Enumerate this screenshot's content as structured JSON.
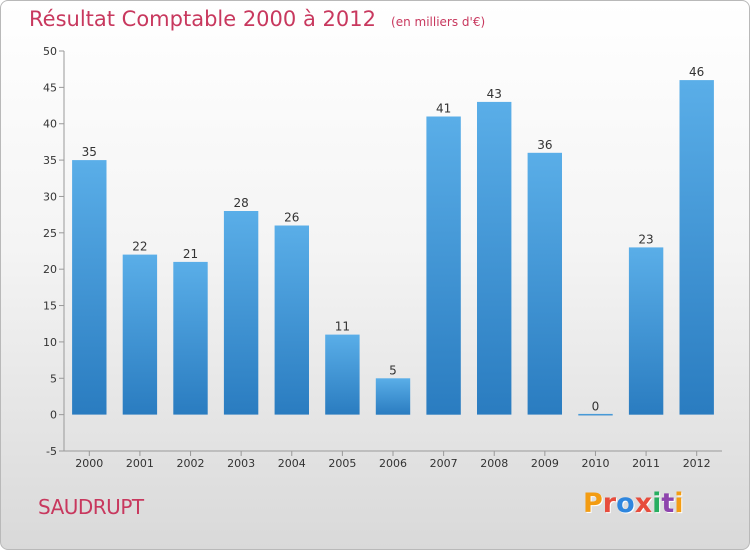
{
  "title": "Résultat Comptable 2000 à 2012",
  "unit_note": "(en milliers d'€)",
  "commune": "SAUDRUPT",
  "logo": {
    "text": "Proxiti",
    "colors": [
      "#f39c12",
      "#e74c3c",
      "#2e86de",
      "#e74c3c",
      "#27ae60",
      "#8e44ad",
      "#f39c12"
    ]
  },
  "chart_data": {
    "type": "bar",
    "title": "Résultat Comptable 2000 à 2012",
    "categories": [
      "2000",
      "2001",
      "2002",
      "2003",
      "2004",
      "2005",
      "2006",
      "2007",
      "2008",
      "2009",
      "2010",
      "2011",
      "2012"
    ],
    "values": [
      35,
      22,
      21,
      28,
      26,
      11,
      5,
      41,
      43,
      36,
      0,
      23,
      46
    ],
    "ylim": [
      -5,
      50
    ],
    "yticks": [
      -5,
      0,
      5,
      10,
      15,
      20,
      25,
      30,
      35,
      40,
      45,
      50
    ],
    "grid": false,
    "bar_color_top": "#5aaee8",
    "bar_color_bottom": "#2a7cc0",
    "axis_color": "#999999"
  }
}
